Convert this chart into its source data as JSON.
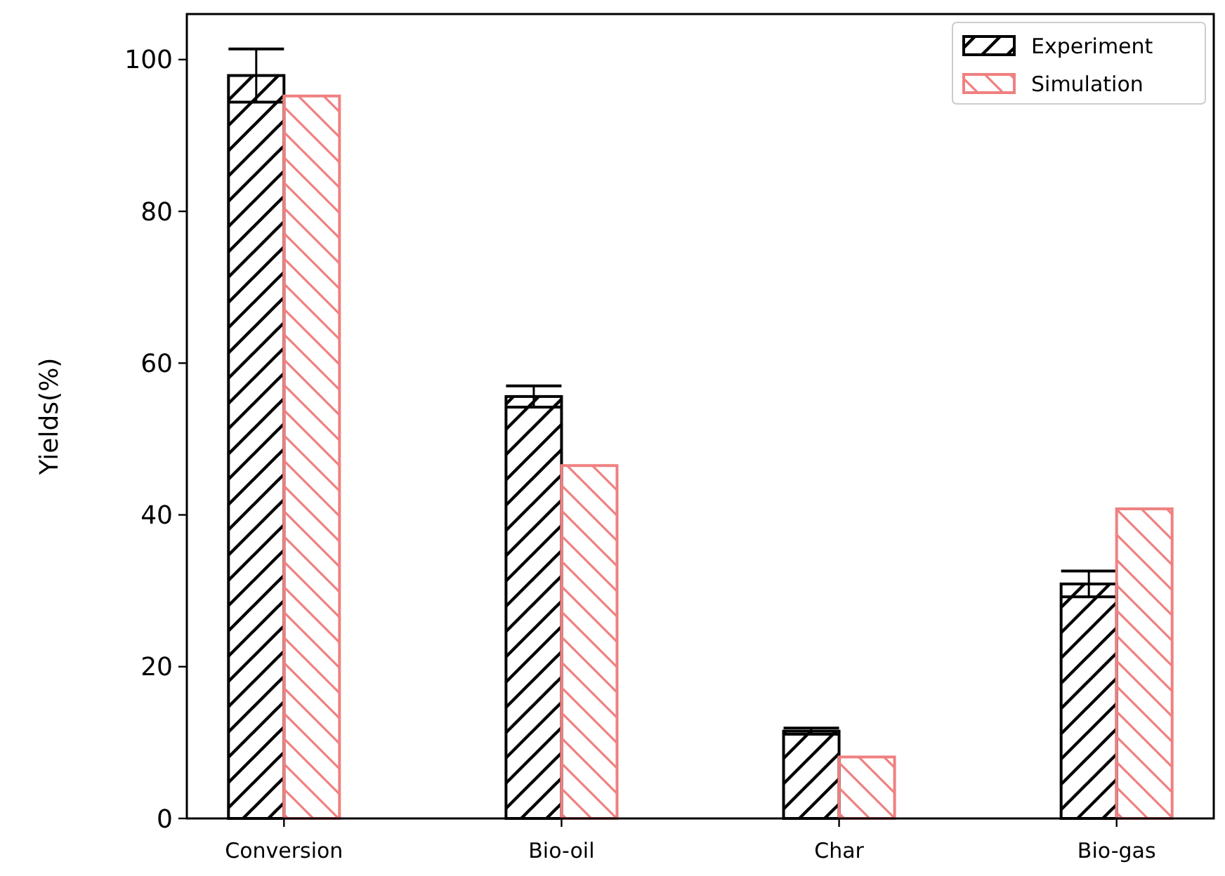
{
  "chart_data": {
    "type": "bar",
    "ylabel": "Yields(%)",
    "categories": [
      "Conversion",
      "Bio-oil",
      "Char",
      "Bio-gas"
    ],
    "series": [
      {
        "name": "Experiment",
        "color": "#000000",
        "values": [
          97.9,
          55.6,
          11.5,
          30.9
        ],
        "errors": [
          3.5,
          1.4,
          0.4,
          1.7
        ]
      },
      {
        "name": "Simulation",
        "color": "#f08080",
        "values": [
          95.2,
          46.5,
          8.1,
          40.8
        ]
      }
    ],
    "ylim": [
      0,
      106
    ],
    "yticks": [
      0,
      20,
      40,
      60,
      80,
      100
    ],
    "legend": "top right",
    "grid": false
  }
}
